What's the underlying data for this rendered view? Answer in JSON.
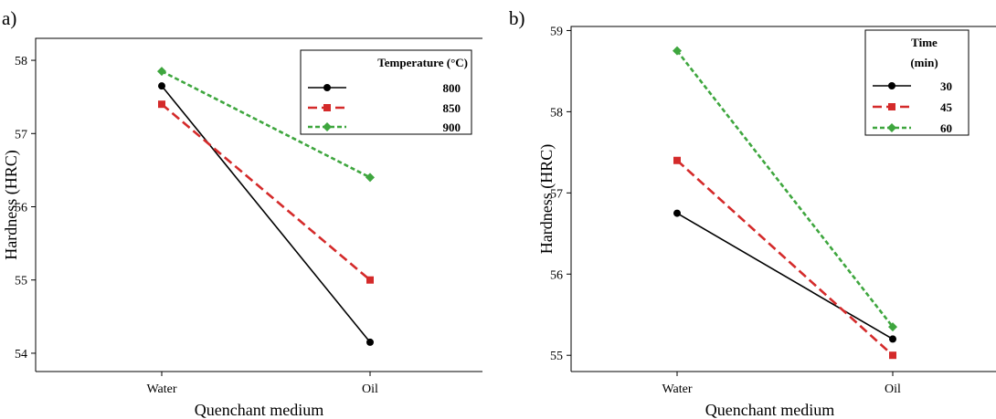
{
  "chart_data": [
    {
      "type": "line",
      "panel_label": "a)",
      "xlabel": "Quenchant medium",
      "ylabel": "Hardness (HRC)",
      "categories": [
        "Water",
        "Oil"
      ],
      "ylim": [
        53.75,
        58.3
      ],
      "yticks": [
        "54",
        "55",
        "56",
        "57",
        "58"
      ],
      "grid": false,
      "legend_placement": "top-right",
      "legend": {
        "title": "Temperature (°C)",
        "subtitle": ""
      },
      "series": [
        {
          "name": "800",
          "values": [
            57.65,
            54.15
          ],
          "color": "#000000",
          "marker": "circle",
          "dash": "solid"
        },
        {
          "name": "850",
          "values": [
            57.4,
            55.0
          ],
          "color": "#d42a2a",
          "marker": "square",
          "dash": "dashed"
        },
        {
          "name": "900",
          "values": [
            57.85,
            56.4
          ],
          "color": "#3ea63e",
          "marker": "diamond",
          "dash": "dotted"
        }
      ]
    },
    {
      "type": "line",
      "panel_label": "b)",
      "xlabel": "Quenchant medium",
      "ylabel": "Hardness (HRC)",
      "categories": [
        "Water",
        "Oil"
      ],
      "ylim": [
        54.8,
        59.05
      ],
      "yticks": [
        "55",
        "56",
        "57",
        "58",
        "59"
      ],
      "grid": false,
      "legend_placement": "top-right",
      "legend": {
        "title": "Time",
        "subtitle": "(min)"
      },
      "series": [
        {
          "name": "30",
          "values": [
            56.75,
            55.2
          ],
          "color": "#000000",
          "marker": "circle",
          "dash": "solid"
        },
        {
          "name": "45",
          "values": [
            57.4,
            55.0
          ],
          "color": "#d42a2a",
          "marker": "square",
          "dash": "dashed"
        },
        {
          "name": "60",
          "values": [
            58.75,
            55.35
          ],
          "color": "#3ea63e",
          "marker": "diamond",
          "dash": "dotted"
        }
      ]
    }
  ]
}
